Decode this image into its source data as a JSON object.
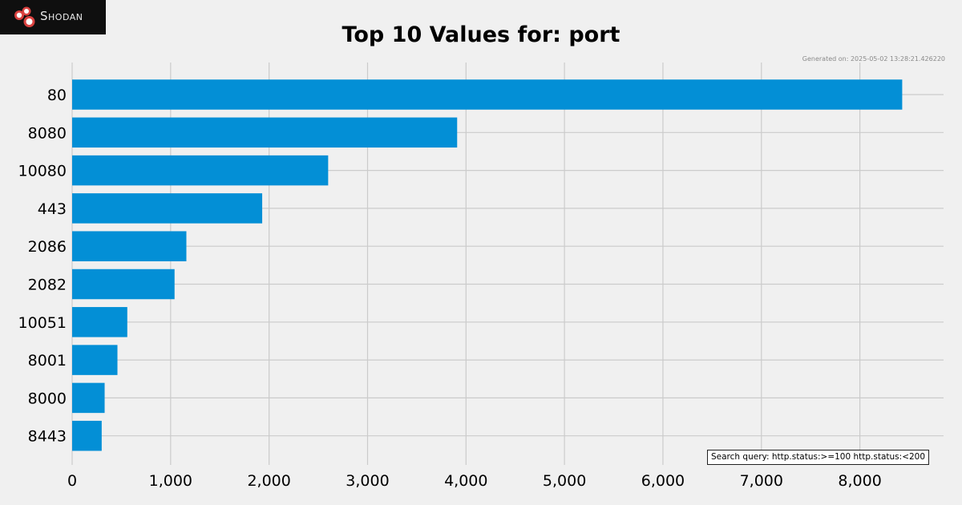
{
  "logo": {
    "icon": "shodan-logo-icon",
    "text": "Shodan"
  },
  "generated_text": "Generated on: 2025-05-02 13:28:21.426220",
  "search_query": "Search query: http.status:>=100 http.status:<200",
  "colors": {
    "bar": "#038fd6",
    "background": "#f0f0f0",
    "grid": "#cbcbcb",
    "logo_bg": "#0f0f0f",
    "logo_accent": "#d9413f"
  },
  "chart_data": {
    "type": "bar",
    "orientation": "horizontal",
    "title": "Top 10 Values for: port",
    "xlabel": "",
    "ylabel": "",
    "categories": [
      "80",
      "8080",
      "10080",
      "443",
      "2086",
      "2082",
      "10051",
      "8001",
      "8000",
      "8443"
    ],
    "values": [
      8430,
      3910,
      2600,
      1930,
      1160,
      1040,
      560,
      460,
      330,
      300
    ],
    "xlim": [
      0,
      8850
    ],
    "xticks": [
      0,
      1000,
      2000,
      3000,
      4000,
      5000,
      6000,
      7000,
      8000
    ],
    "xtick_labels": [
      "0",
      "1,000",
      "2,000",
      "3,000",
      "4,000",
      "5,000",
      "6,000",
      "7,000",
      "8,000"
    ],
    "grid": true,
    "legend": "none"
  }
}
